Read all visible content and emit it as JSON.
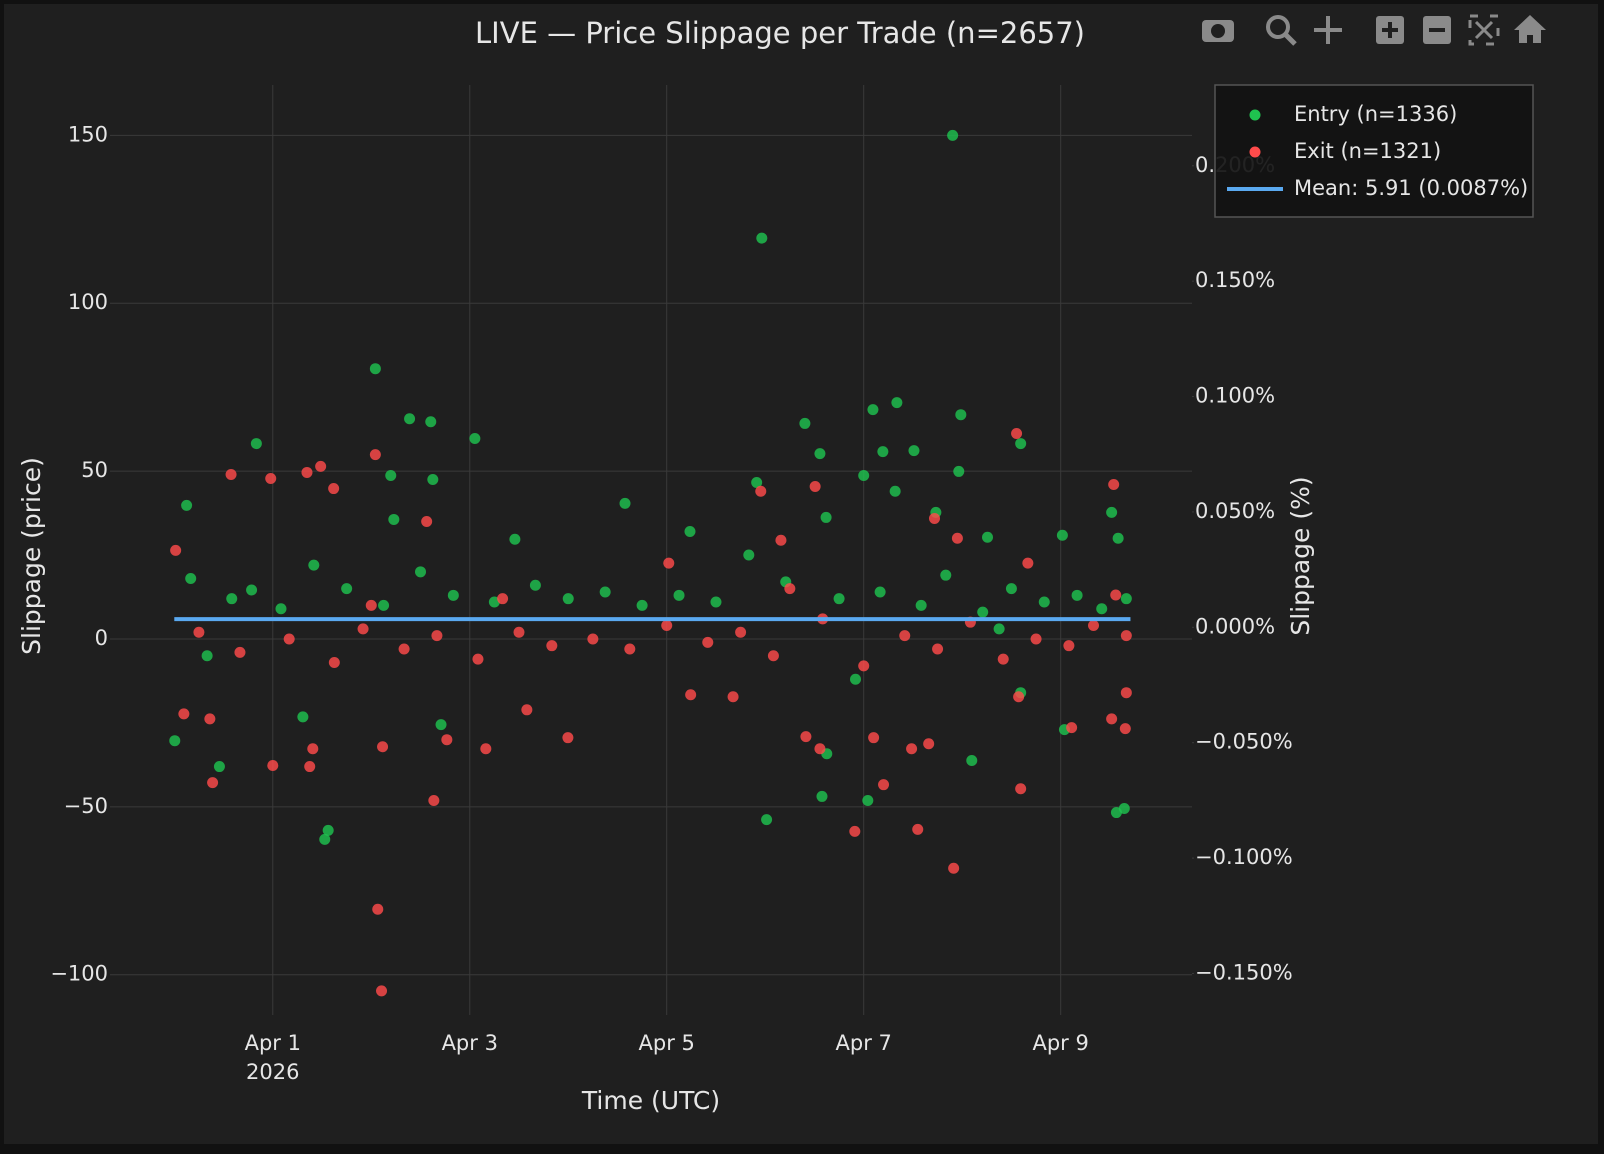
{
  "chart_data": {
    "type": "scatter",
    "title": "LIVE — Price Slippage per Trade (n=2657)",
    "xlabel": "Time (UTC)",
    "ylabel": "Slippage (price)",
    "y2label": "Slippage (%)",
    "x_tick_sublabel": "2026",
    "xlim": [
      "2026-03-30 08:20",
      "2026-04-10 08:00"
    ],
    "ylim": [
      -112,
      165
    ],
    "y2lim": [
      -0.168,
      0.235
    ],
    "xticks": [
      {
        "value": "2026-04-01 00:00",
        "label": "Apr 1"
      },
      {
        "value": "2026-04-03 00:00",
        "label": "Apr 3"
      },
      {
        "value": "2026-04-05 00:00",
        "label": "Apr 5"
      },
      {
        "value": "2026-04-07 00:00",
        "label": "Apr 7"
      },
      {
        "value": "2026-04-09 00:00",
        "label": "Apr 9"
      }
    ],
    "yticks": [
      {
        "value": -100,
        "label": "−100"
      },
      {
        "value": -50,
        "label": "−50"
      },
      0,
      50,
      100,
      150
    ],
    "y2ticks": [
      {
        "value": -0.15,
        "label": "−0.150%"
      },
      {
        "value": -0.1,
        "label": "−0.100%"
      },
      {
        "value": -0.05,
        "label": "−0.050%"
      },
      {
        "value": 0,
        "label": "0.000%"
      },
      {
        "value": 0.05,
        "label": "0.050%"
      },
      {
        "value": 0.1,
        "label": "0.100%"
      },
      {
        "value": 0.15,
        "label": "0.150%"
      },
      {
        "value": 0.2,
        "label": "0.200%"
      }
    ],
    "grid": true,
    "legend": "top-right",
    "series": [
      {
        "name": "Entry (n=1336)",
        "color": "#1fc24f",
        "mode": "markers",
        "x": [
          "2026-03-31 00:07",
          "2026-03-31 20:00",
          "2026-03-31 03:00",
          "2026-03-31 11:00",
          "2026-04-01 12:40",
          "2026-04-01 13:30",
          "2026-04-02 01:00",
          "2026-04-02 04:45",
          "2026-04-02 09:20",
          "2026-04-02 14:30",
          "2026-04-03 01:15",
          "2026-04-02 15:00",
          "2026-04-02 17:00",
          "2026-04-01 07:20",
          "2026-04-02 05:30",
          "2026-04-03 11:00",
          "2026-04-04 13:50",
          "2026-04-05 05:40",
          "2026-04-05 23:10",
          "2026-04-06 00:20",
          "2026-04-05 21:55",
          "2026-04-06 09:40",
          "2026-04-06 13:20",
          "2026-04-06 13:50",
          "2026-04-06 15:00",
          "2026-04-06 14:50",
          "2026-04-07 00:00",
          "2026-04-07 01:00",
          "2026-04-07 02:15",
          "2026-04-07 08:05",
          "2026-04-07 04:40",
          "2026-04-07 07:40",
          "2026-04-07 12:15",
          "2026-04-07 21:40",
          "2026-04-07 23:40",
          "2026-04-07 23:10",
          "2026-04-07 17:35",
          "2026-04-08 02:20",
          "2026-04-08 14:15",
          "2026-04-09 00:25",
          "2026-04-09 00:55",
          "2026-04-09 12:25",
          "2026-04-09 13:35",
          "2026-04-09 15:30",
          "2026-04-08 14:15",
          "2026-04-08 06:10",
          "2026-04-09 14:00",
          "2026-03-31 18:50",
          "2026-03-31 04:00",
          "2026-03-31 14:00",
          "2026-04-01 02:00",
          "2026-04-01 10:00",
          "2026-04-01 18:00",
          "2026-04-02 03:00",
          "2026-04-02 12:00",
          "2026-04-02 20:00",
          "2026-04-03 06:00",
          "2026-04-03 16:00",
          "2026-04-04 00:00",
          "2026-04-04 09:00",
          "2026-04-04 18:00",
          "2026-04-05 03:00",
          "2026-04-05 12:00",
          "2026-04-05 20:00",
          "2026-04-06 05:00",
          "2026-04-06 18:00",
          "2026-04-07 04:00",
          "2026-04-07 14:00",
          "2026-04-07 20:00",
          "2026-04-08 05:00",
          "2026-04-08 12:00",
          "2026-04-08 20:00",
          "2026-04-09 04:00",
          "2026-04-09 10:00",
          "2026-04-09 16:00",
          "2026-03-31 08:00",
          "2026-04-06 22:00",
          "2026-04-08 09:00"
        ],
        "values": [
          -30.3,
          58.2,
          39.8,
          -38,
          -59.7,
          -57,
          80.5,
          48.7,
          65.6,
          64.7,
          59.7,
          47.5,
          -25.5,
          -23.2,
          35.6,
          29.7,
          40.4,
          32,
          119.4,
          -53.8,
          46.6,
          64.2,
          55.2,
          -46.9,
          -34.2,
          36.2,
          48.7,
          -48.1,
          68.3,
          70.4,
          55.8,
          44,
          56.1,
          150,
          66.8,
          49.9,
          37.7,
          -36.2,
          58.2,
          30.9,
          -27,
          37.7,
          -51.7,
          -50.5,
          -16,
          30.3,
          30,
          14.6,
          18,
          12,
          9,
          22,
          15,
          10,
          20,
          13,
          11,
          16,
          12,
          14,
          10,
          13,
          11,
          25,
          17,
          12,
          14,
          10,
          19,
          8,
          15,
          11,
          13,
          9,
          12,
          -5,
          -12,
          3
        ]
      },
      {
        "name": "Exit (n=1321)",
        "color": "#ff4b4b",
        "mode": "markers",
        "x": [
          "2026-03-31 00:20",
          "2026-03-31 13:50",
          "2026-03-31 23:30",
          "2026-03-31 09:20",
          "2026-03-31 08:40",
          "2026-03-31 02:20",
          "2026-04-01 00:00",
          "2026-04-01 08:20",
          "2026-04-01 11:40",
          "2026-04-01 14:50",
          "2026-04-01 09:00",
          "2026-04-01 09:45",
          "2026-04-02 01:00",
          "2026-04-02 01:35",
          "2026-04-02 02:30",
          "2026-04-02 02:45",
          "2026-04-02 15:15",
          "2026-04-02 13:30",
          "2026-04-02 18:25",
          "2026-04-03 03:55",
          "2026-04-03 23:55",
          "2026-04-03 13:55",
          "2026-04-05 00:30",
          "2026-04-05 05:50",
          "2026-04-05 16:10",
          "2026-04-05 22:55",
          "2026-04-06 03:50",
          "2026-04-06 12:10",
          "2026-04-06 09:55",
          "2026-04-06 13:20",
          "2026-04-06 21:50",
          "2026-04-07 02:25",
          "2026-04-07 04:50",
          "2026-04-07 11:40",
          "2026-04-07 13:10",
          "2026-04-07 15:50",
          "2026-04-07 21:55",
          "2026-04-07 17:15",
          "2026-04-07 22:50",
          "2026-04-08 13:15",
          "2026-04-08 14:15",
          "2026-04-08 16:00",
          "2026-04-09 02:40",
          "2026-04-09 12:55",
          "2026-04-09 13:25",
          "2026-04-09 12:25",
          "2026-04-09 15:45",
          "2026-04-09 16:00",
          "2026-04-08 13:45",
          "2026-03-31 06:00",
          "2026-03-31 16:00",
          "2026-04-01 04:00",
          "2026-04-01 15:00",
          "2026-04-01 22:00",
          "2026-04-02 08:00",
          "2026-04-02 16:00",
          "2026-04-03 02:00",
          "2026-04-03 12:00",
          "2026-04-03 20:00",
          "2026-04-04 06:00",
          "2026-04-04 15:00",
          "2026-04-05 00:00",
          "2026-04-05 10:00",
          "2026-04-05 18:00",
          "2026-04-06 02:00",
          "2026-04-06 14:00",
          "2026-04-07 00:00",
          "2026-04-07 10:00",
          "2026-04-07 18:00",
          "2026-04-08 02:00",
          "2026-04-08 10:00",
          "2026-04-08 18:00",
          "2026-04-09 02:00",
          "2026-04-09 08:00",
          "2026-04-09 16:00",
          "2026-04-02 00:00",
          "2026-04-06 06:00",
          "2026-04-03 08:00"
        ],
        "values": [
          26.4,
          49,
          47.8,
          -42.8,
          -23.8,
          -22.3,
          -37.7,
          49.6,
          51.4,
          44.8,
          -38,
          -32.7,
          54.9,
          -80.5,
          -104.8,
          -32.1,
          -48.1,
          35,
          -30,
          -32.7,
          -29.4,
          -21.1,
          22.6,
          -16.6,
          -17.2,
          44,
          29.4,
          45.4,
          -29.1,
          -32.7,
          -57.3,
          -29.4,
          -43.4,
          -32.7,
          -56.7,
          -31.2,
          -68.3,
          35.9,
          30,
          61.2,
          -44.6,
          22.6,
          -26.4,
          46,
          13.1,
          -23.8,
          -26.7,
          -16,
          -17.2,
          2,
          -4,
          0,
          -7,
          3,
          -3,
          1,
          -6,
          2,
          -2,
          0,
          -3,
          4,
          -1,
          2,
          -5,
          6,
          -8,
          1,
          -3,
          5,
          -6,
          0,
          -2,
          4,
          1,
          10,
          15,
          12
        ]
      },
      {
        "name": "Mean: 5.91 (0.0087%)",
        "color": "#5aa9f0",
        "mode": "lines",
        "x": [
          "2026-03-31 00:00",
          "2026-04-09 17:00"
        ],
        "values": [
          5.91,
          5.91
        ]
      }
    ]
  }
}
